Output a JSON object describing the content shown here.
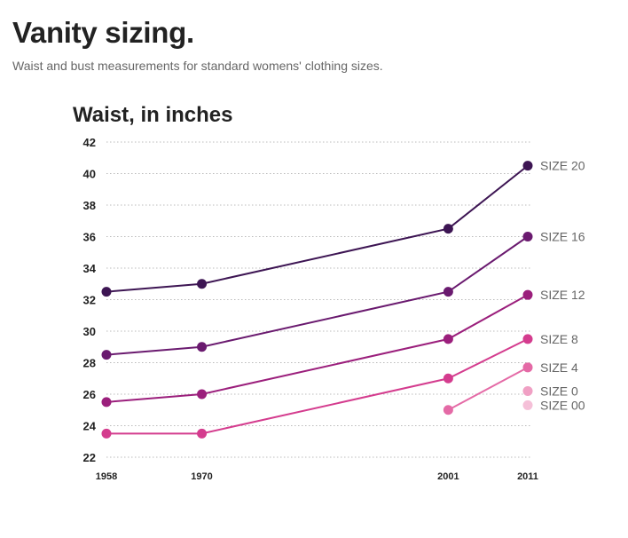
{
  "header": {
    "title": "Vanity sizing.",
    "subtitle": "Waist and bust measurements for standard womens' clothing sizes."
  },
  "chart_data": {
    "type": "line",
    "title": "Waist, in inches",
    "xlabel": "",
    "ylabel": "",
    "x": [
      1958,
      1970,
      2001,
      2011
    ],
    "x_tick_labels": [
      "1958",
      "1970",
      "2001",
      "2011"
    ],
    "ylim": [
      22,
      42
    ],
    "y_ticks": [
      22,
      24,
      26,
      28,
      30,
      32,
      34,
      36,
      38,
      40,
      42
    ],
    "grid": true,
    "series": [
      {
        "name": "SIZE 20",
        "color": "#3d1553",
        "values": [
          32.5,
          33,
          36.5,
          40.5
        ]
      },
      {
        "name": "SIZE 16",
        "color": "#6a1a6f",
        "values": [
          28.5,
          29,
          32.5,
          36
        ]
      },
      {
        "name": "SIZE 12",
        "color": "#9b1f7c",
        "values": [
          25.5,
          26,
          29.5,
          32.3
        ]
      },
      {
        "name": "SIZE 8",
        "color": "#d43c8e",
        "values": [
          23.5,
          23.5,
          27,
          29.5
        ]
      },
      {
        "name": "SIZE 4",
        "color": "#e46aa6",
        "values": [
          null,
          null,
          25,
          27.7
        ]
      },
      {
        "name": "SIZE 0",
        "color": "#f0a0c4",
        "values": [
          null,
          null,
          null,
          26.2
        ]
      },
      {
        "name": "SIZE 00",
        "color": "#f5c0d8",
        "values": [
          null,
          null,
          null,
          25.3
        ]
      }
    ]
  }
}
